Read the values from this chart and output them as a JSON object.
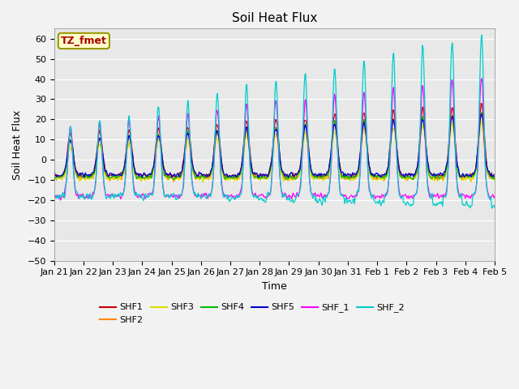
{
  "title": "Soil Heat Flux",
  "xlabel": "Time",
  "ylabel": "Soil Heat Flux",
  "ylim": [
    -50,
    65
  ],
  "annotation_text": "TZ_fmet",
  "annotation_color": "#aa0000",
  "annotation_bg": "#ffffcc",
  "annotation_border": "#999900",
  "legend_labels": [
    "SHF1",
    "SHF2",
    "SHF3",
    "SHF4",
    "SHF5",
    "SHF_1",
    "SHF_2"
  ],
  "line_colors": [
    "#cc0000",
    "#ff8800",
    "#dddd00",
    "#00bb00",
    "#0000cc",
    "#ff00ff",
    "#00cccc"
  ],
  "bg_color": "#e8e8e8",
  "grid_color": "#ffffff",
  "title_fontsize": 11,
  "axis_label_fontsize": 9,
  "tick_label_fontsize": 8,
  "linewidth": 0.9
}
